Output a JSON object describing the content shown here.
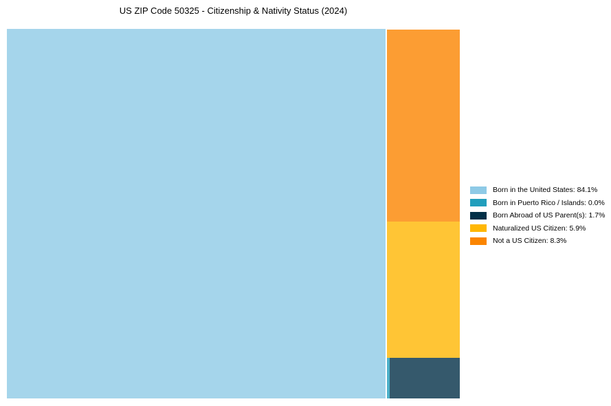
{
  "title": "US ZIP Code 50325 - Citizenship & Nativity Status (2024)",
  "chart_data": {
    "type": "treemap",
    "title": "US ZIP Code 50325 - Citizenship & Nativity Status (2024)",
    "unit": "%",
    "categories": [
      "Born in the United States",
      "Born in Puerto Rico / Islands",
      "Born Abroad of US Parent(s)",
      "Naturalized US Citizen",
      "Not a US Citizen"
    ],
    "values": [
      84.1,
      0.0,
      1.7,
      5.9,
      8.3
    ],
    "colors": [
      "#8ECAE6",
      "#219EBC",
      "#023047",
      "#FFB703",
      "#FB8500"
    ],
    "fill_opacity": 0.8,
    "background": "#FFFFFF",
    "legend_position": "right",
    "layout_note": "large 84.1% block on left; right column stacked top-to-bottom: 8.3%, 5.9%, then bottom row of 0.0% sliver + 1.7%"
  },
  "legend": {
    "items": [
      {
        "label": "Born in the United States: 84.1%",
        "color": "#8ECAE6"
      },
      {
        "label": "Born in Puerto Rico / Islands: 0.0%",
        "color": "#219EBC"
      },
      {
        "label": "Born Abroad of US Parent(s): 1.7%",
        "color": "#023047"
      },
      {
        "label": "Naturalized US Citizen: 5.9%",
        "color": "#FFB703"
      },
      {
        "label": "Not a US Citizen: 8.3%",
        "color": "#FB8500"
      }
    ]
  }
}
